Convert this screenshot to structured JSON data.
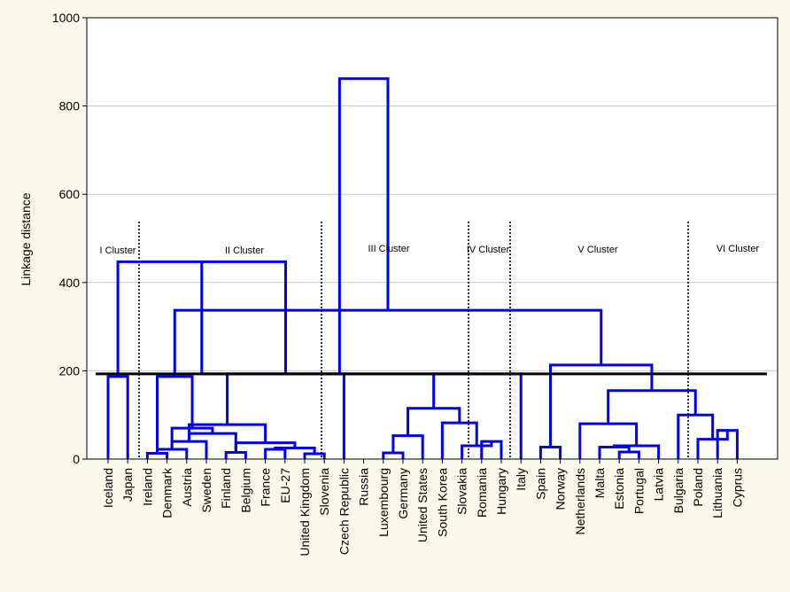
{
  "chart_data": {
    "type": "dendrogram",
    "ylabel": "Linkage distance",
    "ylim": [
      0,
      1000
    ],
    "yticks": [
      0,
      200,
      400,
      600,
      800,
      1000
    ],
    "grid": true,
    "cut_line": 193,
    "leaves": [
      "Iceland",
      "Japan",
      "Ireland",
      "Denmark",
      "Austria",
      "Sweden",
      "Finland",
      "Belgium",
      "France",
      "EU-27",
      "United Kingdom",
      "Slovenia",
      "Czech Republic",
      "Russia",
      "Luxembourg",
      "Germany",
      "United States",
      "South Korea",
      "Slovakia",
      "Romania",
      "Hungary",
      "Italy",
      "Spain",
      "Norway",
      "Netherlands",
      "Malta",
      "Estonia",
      "Portugal",
      "Latvia",
      "Bulgaria",
      "Poland",
      "Lithuania",
      "Cyprus"
    ],
    "merges": [
      [
        0,
        1,
        187
      ],
      [
        2,
        3,
        13
      ],
      [
        34,
        4,
        22
      ],
      [
        35,
        5,
        40
      ],
      [
        6,
        7,
        15
      ],
      [
        8,
        9,
        22
      ],
      [
        10,
        11,
        12
      ],
      [
        38,
        39,
        25
      ],
      [
        37,
        40,
        37
      ],
      [
        36,
        41,
        78
      ],
      [
        42,
        12,
        193
      ],
      [
        33,
        43,
        447
      ],
      [
        14,
        15,
        14
      ],
      [
        45,
        16,
        53
      ],
      [
        19,
        20,
        40
      ],
      [
        18,
        47,
        30
      ],
      [
        17,
        48,
        82
      ],
      [
        46,
        49,
        115
      ],
      [
        50,
        21,
        193
      ],
      [
        22,
        23,
        27
      ],
      [
        26,
        27,
        16
      ],
      [
        25,
        53,
        27
      ],
      [
        54,
        28,
        30
      ],
      [
        24,
        55,
        80
      ],
      [
        31,
        32,
        65
      ],
      [
        30,
        57,
        45
      ],
      [
        29,
        58,
        100
      ],
      [
        56,
        59,
        155
      ],
      [
        52,
        60,
        213
      ],
      [
        36,
        37,
        58
      ],
      [
        35,
        62,
        70
      ],
      [
        34,
        63,
        187
      ],
      [
        61,
        64,
        337
      ],
      [
        44,
        51,
        193
      ],
      [
        66,
        65,
        862
      ]
    ],
    "clusters": [
      {
        "label": "I Cluster"
      },
      {
        "label": "II Cluster"
      },
      {
        "label": "III Cluster"
      },
      {
        "label": "IV Cluster"
      },
      {
        "label": "V Cluster"
      },
      {
        "label": "VI Cluster"
      }
    ]
  }
}
